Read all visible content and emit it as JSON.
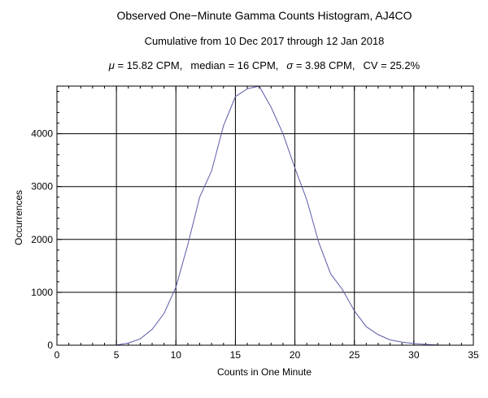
{
  "chart_data": {
    "type": "line",
    "title": "Observed One−Minute Gamma Counts Histogram, AJ4CO",
    "subtitle": "Cumulative from 10 Dec 2017 through 12 Jan 2018",
    "stats": {
      "mu_symbol": "μ",
      "mu_text": " = 15.82 CPM,",
      "median_text": "median = 16 CPM,",
      "sigma_symbol": "σ",
      "sigma_text": " = 3.98 CPM,",
      "cv_text": "CV = 25.2%"
    },
    "xlabel": "Counts in One Minute",
    "ylabel": "Occurrences",
    "xlim": [
      0,
      35
    ],
    "ylim": [
      0,
      4900
    ],
    "xticks": [
      0,
      5,
      10,
      15,
      20,
      25,
      30,
      35
    ],
    "yticks": [
      0,
      1000,
      2000,
      3000,
      4000
    ],
    "grid": true,
    "line_color": "#5b5ba8",
    "series": [
      {
        "x": [
          0,
          1,
          2,
          3,
          4,
          5,
          6,
          7,
          8,
          9,
          10,
          11,
          12,
          13,
          14,
          15,
          16,
          17,
          18,
          19,
          20,
          21,
          22,
          23,
          24,
          25,
          26,
          27,
          28,
          29,
          30,
          31,
          32,
          33,
          34,
          35
        ],
        "values": [
          0,
          0,
          0,
          0,
          0,
          5,
          40,
          120,
          300,
          600,
          1100,
          1900,
          2800,
          3300,
          4150,
          4700,
          4850,
          4900,
          4500,
          4000,
          3350,
          2750,
          1950,
          1350,
          1050,
          650,
          350,
          200,
          100,
          60,
          30,
          15,
          5,
          0,
          0,
          0
        ]
      }
    ]
  }
}
